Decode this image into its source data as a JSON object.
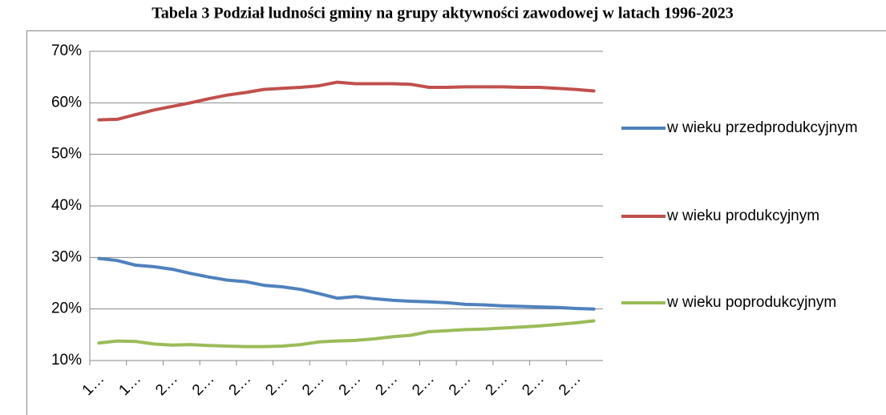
{
  "chart_data": {
    "type": "line",
    "title": "Tabela 3 Podział ludności gminy na grupy aktywności zawodowej w latach 1996-2023",
    "categories": [
      "1…",
      null,
      "1…",
      null,
      "2…",
      null,
      "2…",
      null,
      "2…",
      null,
      "2…",
      null,
      "2…",
      null,
      "2…",
      null,
      "2…",
      null,
      "2…",
      null,
      "2…",
      null,
      "2…",
      null,
      "2…",
      null,
      "2…",
      null
    ],
    "series": [
      {
        "name": "w wieku przedprodukcyjnym",
        "color": "#4f81bd",
        "values": [
          29.8,
          29.4,
          28.5,
          28.2,
          27.7,
          26.9,
          26.2,
          25.6,
          25.3,
          24.6,
          24.3,
          23.8,
          23.0,
          22.1,
          22.4,
          22.0,
          21.7,
          21.5,
          21.4,
          21.2,
          20.9,
          20.8,
          20.6,
          20.5,
          20.4,
          20.3,
          20.1,
          20.0
        ]
      },
      {
        "name": "w wieku produkcyjnym",
        "color": "#c0504d",
        "values": [
          56.7,
          56.8,
          57.7,
          58.6,
          59.3,
          60.0,
          60.8,
          61.5,
          62.0,
          62.6,
          62.8,
          63.0,
          63.3,
          64.0,
          63.7,
          63.7,
          63.7,
          63.6,
          63.0,
          63.0,
          63.1,
          63.1,
          63.1,
          63.0,
          63.0,
          62.8,
          62.6,
          62.3
        ]
      },
      {
        "name": "w wieku poprodukcyjnym",
        "color": "#9bbb59",
        "values": [
          13.4,
          13.8,
          13.7,
          13.2,
          13.0,
          13.1,
          12.9,
          12.8,
          12.7,
          12.7,
          12.8,
          13.1,
          13.6,
          13.8,
          13.9,
          14.2,
          14.6,
          14.9,
          15.6,
          15.8,
          16.0,
          16.1,
          16.3,
          16.5,
          16.7,
          17.0,
          17.3,
          17.7
        ]
      }
    ],
    "ylim": [
      10,
      70
    ],
    "yticks": [
      {
        "value": 10,
        "label": "10%"
      },
      {
        "value": 20,
        "label": "20%"
      },
      {
        "value": 30,
        "label": "30%"
      },
      {
        "value": 40,
        "label": "40%"
      },
      {
        "value": 50,
        "label": "50%"
      },
      {
        "value": 60,
        "label": "60%"
      },
      {
        "value": 70,
        "label": "70%"
      }
    ],
    "grid": true,
    "legend": "right"
  }
}
